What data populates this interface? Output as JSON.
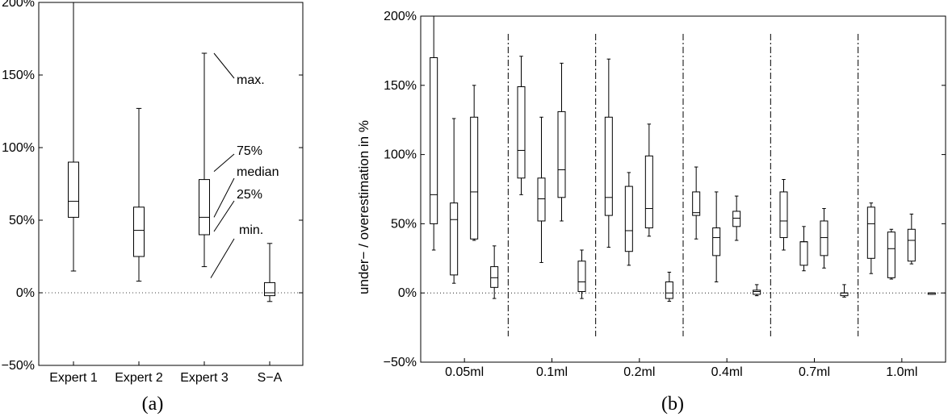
{
  "chart_data": [
    {
      "type": "box",
      "caption": "(a)",
      "xlabel": "",
      "ylabel": "",
      "ylim": [
        -50,
        200
      ],
      "yticks": [
        -50,
        0,
        50,
        100,
        150,
        200
      ],
      "ytick_labels": [
        "−50%",
        "0%",
        "50%",
        "100%",
        "150%",
        "200%"
      ],
      "reference_line": 0,
      "categories": [
        "Expert 1",
        "Expert 2",
        "Expert 3",
        "S−A"
      ],
      "boxes": [
        {
          "min": 15,
          "q1": 52,
          "median": 63,
          "q3": 90,
          "max": 200
        },
        {
          "min": 8,
          "q1": 25,
          "median": 43,
          "q3": 59,
          "max": 127
        },
        {
          "min": 18,
          "q1": 40,
          "median": 52,
          "q3": 78,
          "max": 165
        },
        {
          "min": -6,
          "q1": -2,
          "median": 0,
          "q3": 7,
          "max": 34
        }
      ],
      "annotations": [
        "max.",
        "75%",
        "median",
        "25%",
        "min."
      ]
    },
    {
      "type": "box",
      "caption": "(b)",
      "xlabel": "",
      "ylabel": "under− / overestimation in %",
      "ylim": [
        -50,
        200
      ],
      "yticks": [
        -50,
        0,
        50,
        100,
        150,
        200
      ],
      "ytick_labels": [
        "−50%",
        "0%",
        "50%",
        "100%",
        "150%",
        "200%"
      ],
      "reference_line": 0,
      "groups": [
        "0.05ml",
        "0.1ml",
        "0.2ml",
        "0.4ml",
        "0.7ml",
        "1.0ml"
      ],
      "boxes": [
        [
          {
            "min": 31,
            "q1": 50,
            "median": 71,
            "q3": 170,
            "max": 200
          },
          {
            "min": 7,
            "q1": 13,
            "median": 53,
            "q3": 65,
            "max": 126
          },
          {
            "min": 38,
            "q1": 39,
            "median": 73,
            "q3": 127,
            "max": 150
          },
          {
            "min": -4,
            "q1": 4,
            "median": 11,
            "q3": 19,
            "max": 34
          }
        ],
        [
          {
            "min": 71,
            "q1": 83,
            "median": 103,
            "q3": 149,
            "max": 171
          },
          {
            "min": 22,
            "q1": 52,
            "median": 68,
            "q3": 83,
            "max": 127
          },
          {
            "min": 52,
            "q1": 69,
            "median": 89,
            "q3": 131,
            "max": 166
          },
          {
            "min": -4,
            "q1": 1,
            "median": 8,
            "q3": 23,
            "max": 31
          }
        ],
        [
          {
            "min": 33,
            "q1": 56,
            "median": 69,
            "q3": 127,
            "max": 169
          },
          {
            "min": 20,
            "q1": 30,
            "median": 45,
            "q3": 77,
            "max": 87
          },
          {
            "min": 41,
            "q1": 47,
            "median": 61,
            "q3": 99,
            "max": 122
          },
          {
            "min": -6,
            "q1": -4,
            "median": 0,
            "q3": 8,
            "max": 15
          }
        ],
        [
          {
            "min": 39,
            "q1": 56,
            "median": 58,
            "q3": 73,
            "max": 91
          },
          {
            "min": 8,
            "q1": 27,
            "median": 40,
            "q3": 47,
            "max": 73
          },
          {
            "min": 38,
            "q1": 48,
            "median": 54,
            "q3": 59,
            "max": 70
          },
          {
            "min": -2,
            "q1": -1,
            "median": 1,
            "q3": 2,
            "max": 6
          }
        ],
        [
          {
            "min": 31,
            "q1": 40,
            "median": 52,
            "q3": 73,
            "max": 82
          },
          {
            "min": 16,
            "q1": 20,
            "median": 37,
            "q3": 37,
            "max": 48
          },
          {
            "min": 18,
            "q1": 27,
            "median": 40,
            "q3": 52,
            "max": 61
          },
          {
            "min": -3,
            "q1": -2,
            "median": 0,
            "q3": 0,
            "max": 6
          }
        ],
        [
          {
            "min": 14,
            "q1": 25,
            "median": 50,
            "q3": 62,
            "max": 65
          },
          {
            "min": 10,
            "q1": 11,
            "median": 32,
            "q3": 44,
            "max": 46
          },
          {
            "min": 21,
            "q1": 23,
            "median": 38,
            "q3": 46,
            "max": 57
          },
          {
            "min": -1,
            "q1": -1,
            "median": 0,
            "q3": 0,
            "max": 0
          }
        ]
      ]
    }
  ]
}
